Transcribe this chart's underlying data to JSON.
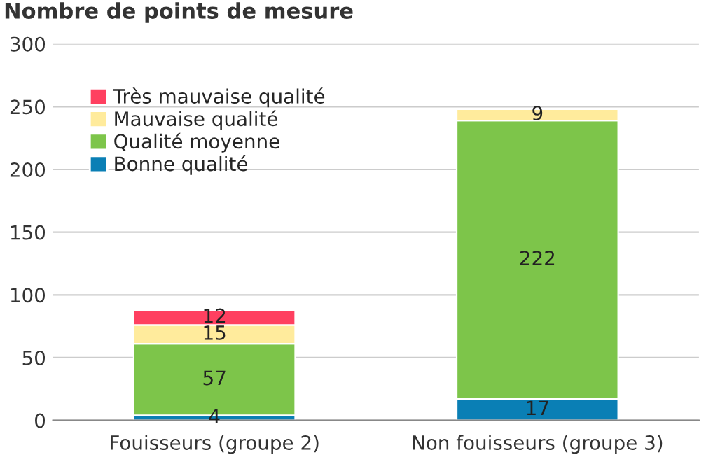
{
  "chart_data": {
    "type": "bar",
    "title": "Nombre de points de mesure",
    "categories": [
      "Fouisseurs (groupe 2)",
      "Non fouisseurs (groupe 3)"
    ],
    "stacked": true,
    "series": [
      {
        "name": "Bonne qualité",
        "color": "#0a7fb5",
        "values": [
          4,
          17
        ]
      },
      {
        "name": "Qualité moyenne",
        "color": "#7dc54a",
        "values": [
          57,
          222
        ]
      },
      {
        "name": "Mauvaise qualité",
        "color": "#ffeb9c",
        "values": [
          15,
          9
        ]
      },
      {
        "name": "Très mauvaise qualité",
        "color": "#ff4060",
        "values": [
          12,
          null
        ]
      }
    ],
    "ylim": [
      0,
      300
    ],
    "yticks": [
      0,
      50,
      100,
      150,
      200,
      250,
      300
    ],
    "grid": "y",
    "legend": "top left",
    "data_labels": true
  }
}
